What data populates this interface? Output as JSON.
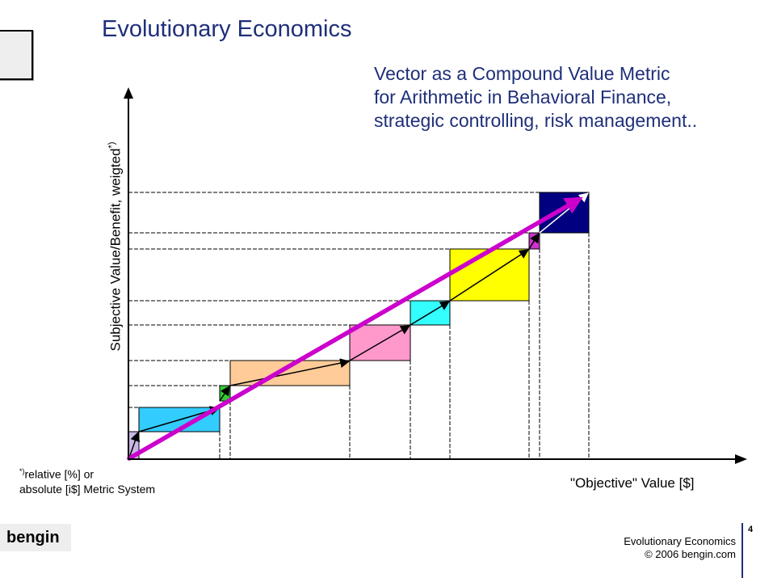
{
  "header": {
    "title": "Evolutionary Economics",
    "subtitle_lines": [
      "Vector as a Compound Value Metric",
      "for Arithmetic in Behavioral Finance,",
      "strategic controlling, risk management.."
    ]
  },
  "axes": {
    "ylabel": "Subjective Value/Benefit, weigted",
    "ylabel_marker": "*)",
    "xlabel": "\"Objective\" Value [$]"
  },
  "footnote": {
    "marker": "*)",
    "line1": "relative [%] or",
    "line2": "absolute [i$] Metric System"
  },
  "footer": {
    "brand": "bengin",
    "title": "Evolutionary Economics",
    "copyright": "© 2006 bengin.com",
    "page_number": "4"
  },
  "diagram": {
    "colors": {
      "steps": [
        "#c9b6e6",
        "#33ccff",
        "#33cc33",
        "#ffcc99",
        "#ff99cc",
        "#33ffff",
        "#ffff00",
        "#cc33cc",
        "#000080"
      ],
      "compound_vector": "#cc00cc",
      "grid_dash": "#000000"
    },
    "step_names": [
      "lavender",
      "blue",
      "green",
      "peach",
      "pink",
      "cyan",
      "yellow",
      "magenta",
      "navy"
    ]
  }
}
